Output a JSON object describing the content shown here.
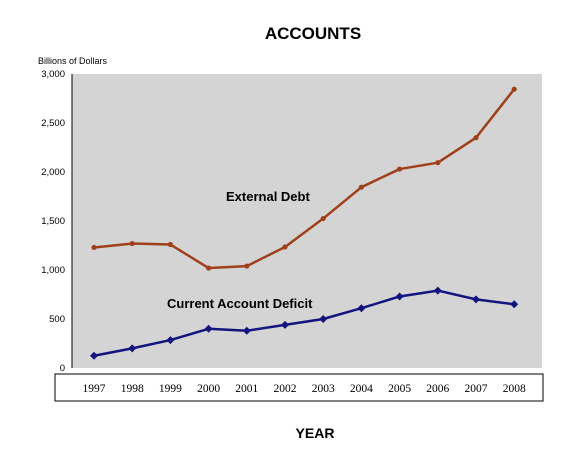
{
  "colors": {
    "plot_background": "#d4d4d4",
    "external_debt": "#a0401a",
    "current_account_deficit": "#14147e"
  },
  "chart_data": {
    "type": "line",
    "title": "ACCOUNTS",
    "ylabel": "Billions of Dollars",
    "xlabel": "YEAR",
    "ylim": [
      0,
      3000
    ],
    "yticks": [
      "0",
      "500",
      "1,000",
      "1,500",
      "2,000",
      "2,500",
      "3,000"
    ],
    "ytick_values": [
      0,
      500,
      1000,
      1500,
      2000,
      2500,
      3000
    ],
    "x": [
      "1997",
      "1998",
      "1999",
      "2000",
      "2001",
      "2002",
      "2003",
      "2004",
      "2005",
      "2006",
      "2007",
      "2008"
    ],
    "grid": false,
    "series": [
      {
        "name": "External Debt",
        "marker": "circle",
        "values": [
          1230,
          1270,
          1260,
          1020,
          1040,
          1235,
          1525,
          1845,
          2030,
          2095,
          2350,
          2845
        ]
      },
      {
        "name": "Current Account Deficit",
        "marker": "diamond",
        "values": [
          125,
          200,
          285,
          400,
          380,
          440,
          500,
          610,
          730,
          790,
          700,
          650
        ]
      }
    ]
  }
}
